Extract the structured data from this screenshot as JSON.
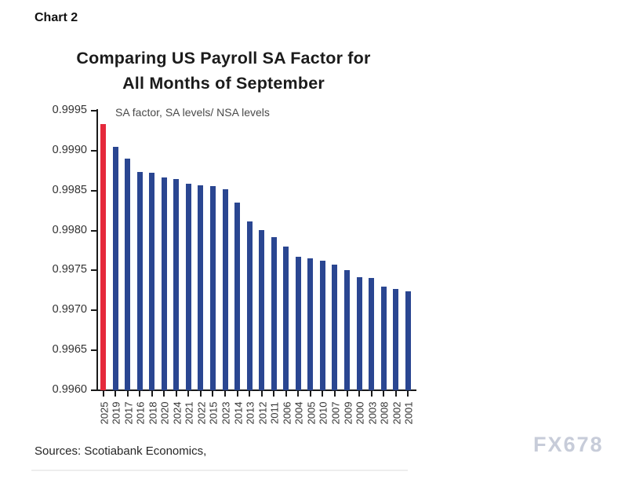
{
  "page": {
    "chart_label": "Chart 2",
    "sources": "Sources: Scotiabank Economics,",
    "watermark": "FX678"
  },
  "chart_data": {
    "type": "bar",
    "title_line1": "Comparing US Payroll SA Factor for",
    "title_line2": "All Months of September",
    "subtitle": "SA factor, SA levels/ NSA levels",
    "ylabel": "SA factor (SA levels / NSA levels)",
    "categories": [
      "2025",
      "2019",
      "2017",
      "2016",
      "2018",
      "2020",
      "2024",
      "2021",
      "2022",
      "2015",
      "2023",
      "2014",
      "2013",
      "2012",
      "2011",
      "2006",
      "2004",
      "2005",
      "2010",
      "2007",
      "2009",
      "2000",
      "2003",
      "2008",
      "2002",
      "2001"
    ],
    "values": [
      0.99933,
      0.99905,
      0.9989,
      0.99873,
      0.99872,
      0.99866,
      0.99864,
      0.99859,
      0.99857,
      0.99856,
      0.99852,
      0.99835,
      0.99811,
      0.99801,
      0.99792,
      0.9978,
      0.99767,
      0.99765,
      0.99762,
      0.99757,
      0.9975,
      0.99742,
      0.99741,
      0.9973,
      0.99727,
      0.99724
    ],
    "highlight_index": 0,
    "colors": {
      "highlight_bar": "#e5293b",
      "default_bar": "#2a4691",
      "axis": "#1a1a1a"
    },
    "ylim": [
      0.996,
      0.9995
    ],
    "yticks": [
      "0.9995",
      "0.9990",
      "0.9985",
      "0.9980",
      "0.9975",
      "0.9970",
      "0.9965",
      "0.9960"
    ],
    "grid": "off",
    "legend": "none"
  }
}
